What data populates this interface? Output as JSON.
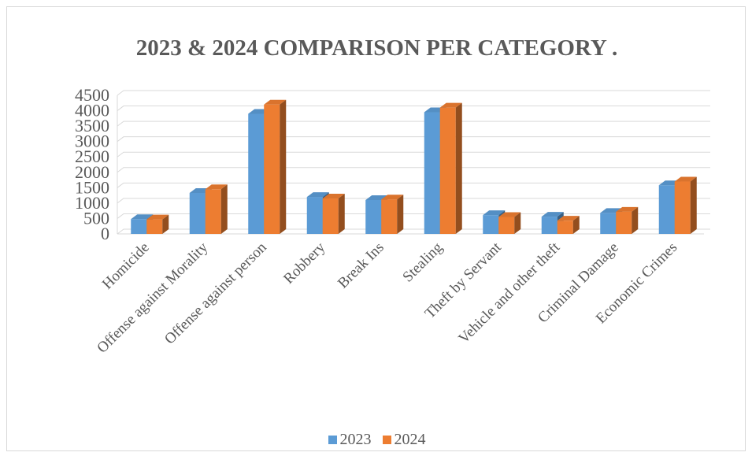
{
  "chart_data": {
    "type": "bar",
    "title": "2023 & 2024 COMPARISON PER CATEGORY .",
    "categories": [
      "Homicide",
      "Offense against Morality",
      "Offense against person",
      "Robbery",
      "Break Ins",
      "Stealing",
      "Theft by Servant",
      "Vehicle and other theft",
      "Criminal Damage",
      "Economic Crimes"
    ],
    "series": [
      {
        "name": "2023",
        "color": "#5b9bd5",
        "values": [
          480,
          1330,
          3900,
          1200,
          1100,
          3950,
          610,
          560,
          680,
          1580
        ]
      },
      {
        "name": "2024",
        "color": "#ed7d31",
        "values": [
          470,
          1450,
          4200,
          1150,
          1120,
          4100,
          550,
          430,
          720,
          1700
        ]
      }
    ],
    "yticks": [
      "0",
      "500",
      "1000",
      "1500",
      "2000",
      "2500",
      "3000",
      "3500",
      "4000",
      "4500"
    ],
    "ylim": [
      0,
      4500
    ],
    "grid": true,
    "style": "3d-column",
    "legend_position": "bottom"
  }
}
